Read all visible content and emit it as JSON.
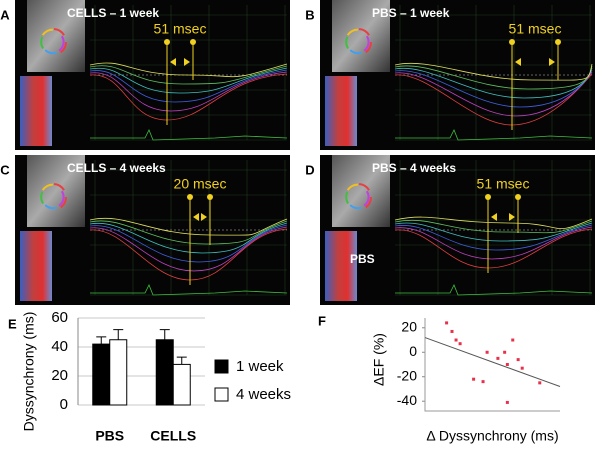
{
  "panels": [
    {
      "letter": "A",
      "title": "CELLS – 1 week",
      "delay": "51 msec"
    },
    {
      "letter": "B",
      "title": "PBS – 1 week",
      "delay": "51 msec"
    },
    {
      "letter": "C",
      "title": "CELLS – 4 weeks",
      "delay": "20 msec"
    },
    {
      "letter": "D",
      "title": "PBS – 4 weeks",
      "delay": "51 msec",
      "note": "PBS"
    }
  ],
  "chart_data": [
    {
      "type": "bar",
      "letter": "E",
      "ylabel": "Dyssynchrony (ms)",
      "categories": [
        "PBS",
        "CELLS"
      ],
      "series": [
        {
          "name": "1 week",
          "color": "#000000",
          "values": [
            42,
            45
          ],
          "errors": [
            5,
            7
          ]
        },
        {
          "name": "4 weeks",
          "color": "#ffffff",
          "values": [
            45,
            28
          ],
          "errors": [
            7,
            5
          ]
        }
      ],
      "ylim": [
        0,
        60
      ],
      "yticks": [
        0,
        20,
        40,
        60
      ]
    },
    {
      "type": "scatter",
      "letter": "F",
      "xlabel": "Δ Dyssynchrony (ms)",
      "ylabel": "ΔEF (%)",
      "x": [
        16,
        20,
        23,
        26,
        36,
        43,
        46,
        54,
        59,
        61,
        65,
        69,
        72,
        61,
        85
      ],
      "values": [
        24,
        17,
        10,
        7,
        -22,
        -24,
        0,
        -5,
        0,
        -10,
        10,
        -6,
        -13,
        -41,
        -25
      ],
      "color": "#e8304a",
      "trendline": {
        "x": [
          0,
          100
        ],
        "y": [
          12,
          -28
        ]
      },
      "xlim": [
        0,
        100
      ],
      "ylim": [
        -48,
        28
      ],
      "yticks": [
        -40,
        -20,
        0,
        20
      ]
    }
  ]
}
